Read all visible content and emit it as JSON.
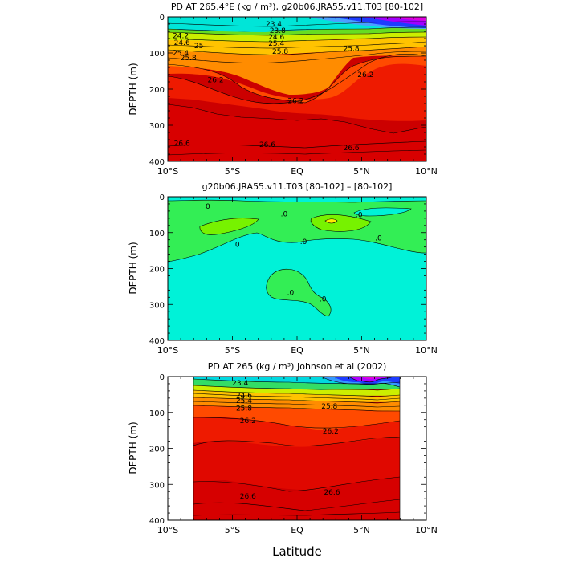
{
  "chart_data": [
    {
      "type": "heatmap",
      "title": "PD AT 265.4°E (kg / m³), g20b06.JRA55.v11.T03 [80-102]",
      "xlabel": "",
      "ylabel": "DEPTH (m)",
      "x_ticks": [
        "10°S",
        "5°S",
        "EQ",
        "5°N",
        "10°N"
      ],
      "x_tick_values": [
        -10,
        -5,
        0,
        5,
        10
      ],
      "y_ticks": [
        "0",
        "100",
        "200",
        "300",
        "400"
      ],
      "y_tick_values": [
        0,
        100,
        200,
        300,
        400
      ],
      "xlim": [
        -10,
        10
      ],
      "ylim": [
        400,
        0
      ],
      "contour_labels": [
        {
          "text": "23.4",
          "lat": -1.8,
          "depth": 20
        },
        {
          "text": "24.2",
          "lat": -9.0,
          "depth": 52
        },
        {
          "text": "24.6",
          "lat": -8.9,
          "depth": 71
        },
        {
          "text": "25",
          "lat": -7.6,
          "depth": 80
        },
        {
          "text": "25.4",
          "lat": -9.0,
          "depth": 100
        },
        {
          "text": "25.8",
          "lat": -8.4,
          "depth": 113
        },
        {
          "text": "23.8",
          "lat": -1.5,
          "depth": 38
        },
        {
          "text": "24.6",
          "lat": -1.6,
          "depth": 56
        },
        {
          "text": "25.4",
          "lat": -1.6,
          "depth": 73
        },
        {
          "text": "25.8",
          "lat": -1.3,
          "depth": 96
        },
        {
          "text": "25.8",
          "lat": 4.2,
          "depth": 88
        },
        {
          "text": "26.2",
          "lat": -6.3,
          "depth": 174
        },
        {
          "text": "26.2",
          "lat": -0.1,
          "depth": 232
        },
        {
          "text": "26.2",
          "lat": 5.3,
          "depth": 160
        },
        {
          "text": "26.6",
          "lat": -8.9,
          "depth": 350
        },
        {
          "text": "26.6",
          "lat": -2.3,
          "depth": 353
        },
        {
          "text": "26.6",
          "lat": 4.2,
          "depth": 362
        }
      ]
    },
    {
      "type": "heatmap",
      "title": "g20b06.JRA55.v11.T03 [80-102] –  [80-102]",
      "xlabel": "",
      "ylabel": "DEPTH (m)",
      "x_ticks": [
        "10°S",
        "5°S",
        "EQ",
        "5°N",
        "10°N"
      ],
      "x_tick_values": [
        -10,
        -5,
        0,
        5,
        10
      ],
      "y_ticks": [
        "0",
        "100",
        "200",
        "300",
        "400"
      ],
      "y_tick_values": [
        0,
        100,
        200,
        300,
        400
      ],
      "xlim": [
        -10,
        10
      ],
      "ylim": [
        400,
        0
      ],
      "contour_labels": [
        {
          "text": "0",
          "lat": -6.9,
          "depth": 27
        },
        {
          "text": ".0",
          "lat": -1.0,
          "depth": 48
        },
        {
          "text": ".0",
          "lat": 4.8,
          "depth": 50
        },
        {
          "text": ".0",
          "lat": -4.7,
          "depth": 133
        },
        {
          "text": ".0",
          "lat": 0.5,
          "depth": 125
        },
        {
          "text": ".0",
          "lat": 6.3,
          "depth": 115
        },
        {
          "text": ".0",
          "lat": -0.5,
          "depth": 267
        },
        {
          "text": ".0",
          "lat": 2.0,
          "depth": 285
        }
      ]
    },
    {
      "type": "heatmap",
      "title": "PD AT 265 (kg / m³) Johnson et al (2002)",
      "xlabel": "Latitude",
      "ylabel": "DEPTH (m)",
      "x_ticks": [
        "10°S",
        "5°S",
        "EQ",
        "5°N",
        "10°N"
      ],
      "x_tick_values": [
        -10,
        -5,
        0,
        5,
        10
      ],
      "y_ticks": [
        "0",
        "100",
        "200",
        "300",
        "400"
      ],
      "y_tick_values": [
        0,
        100,
        200,
        300,
        400
      ],
      "xlim": [
        -10,
        10
      ],
      "ylim": [
        400,
        0
      ],
      "data_extent_lat": [
        -8,
        8
      ],
      "data_extent_depth": [
        0,
        400
      ],
      "contour_labels": [
        {
          "text": "23.4",
          "lat": -4.4,
          "depth": 18
        },
        {
          "text": "24.6",
          "lat": -4.1,
          "depth": 52
        },
        {
          "text": "25.4",
          "lat": -4.1,
          "depth": 67
        },
        {
          "text": "25.8",
          "lat": -4.1,
          "depth": 88
        },
        {
          "text": "25.8",
          "lat": 2.5,
          "depth": 83
        },
        {
          "text": "26.2",
          "lat": -3.8,
          "depth": 123
        },
        {
          "text": "26.2",
          "lat": 2.6,
          "depth": 152
        },
        {
          "text": "26.6",
          "lat": -3.8,
          "depth": 333
        },
        {
          "text": "26.6",
          "lat": 2.7,
          "depth": 322
        }
      ]
    }
  ]
}
